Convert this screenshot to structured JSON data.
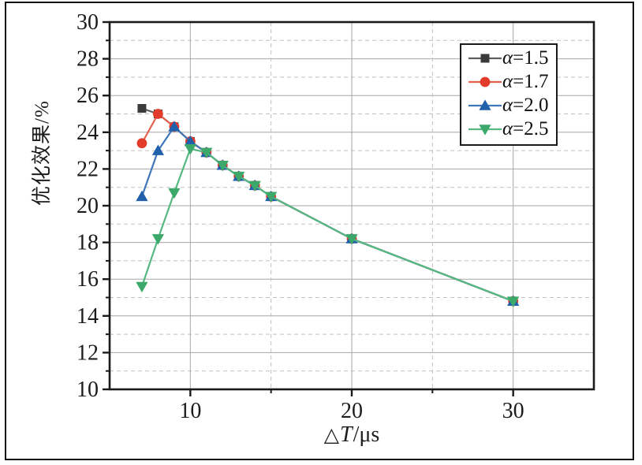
{
  "chart_data": {
    "type": "line",
    "title": "",
    "xlabel": "△T/μs",
    "xlabel_parts": {
      "symbol": "△",
      "variable": "T",
      "unit": "/μs"
    },
    "ylabel": "优化效果/%",
    "xlim": [
      5,
      35
    ],
    "ylim": [
      10,
      30
    ],
    "x_major_ticks": [
      10,
      20,
      30
    ],
    "x_minor_ticks": [
      15,
      25
    ],
    "y_major_ticks": [
      10,
      12,
      14,
      16,
      18,
      20,
      22,
      24,
      26,
      28,
      30
    ],
    "y_minor_ticks": [
      11,
      13,
      15,
      17,
      19,
      21,
      23,
      25,
      27,
      29
    ],
    "grid": {
      "major": "solid",
      "minor": "dashed",
      "on": true
    },
    "legend": {
      "position": "top-right",
      "entries": [
        "α=1.5",
        "α=1.7",
        "α=2.0",
        "α=2.5"
      ]
    },
    "series": [
      {
        "name": "α=1.5",
        "marker": "square",
        "fill": "#3a3a3a",
        "stroke": "#5f5f5f",
        "x": [
          7,
          8,
          9,
          10,
          11,
          12,
          13,
          14,
          15,
          20,
          30
        ],
        "y": [
          25.3,
          25.0,
          24.3,
          23.5,
          22.9,
          22.2,
          21.6,
          21.1,
          20.5,
          18.2,
          14.8
        ]
      },
      {
        "name": "α=1.7",
        "marker": "circle",
        "fill": "#e23b2b",
        "stroke": "#e4604f",
        "x": [
          7,
          8,
          9,
          10,
          11,
          12,
          13,
          14,
          15,
          20,
          30
        ],
        "y": [
          23.4,
          25.0,
          24.3,
          23.5,
          22.9,
          22.2,
          21.6,
          21.1,
          20.5,
          18.2,
          14.8
        ]
      },
      {
        "name": "α=2.0",
        "marker": "triangle-up",
        "fill": "#2160ab",
        "stroke": "#3f77ba",
        "x": [
          7,
          8,
          9,
          10,
          11,
          12,
          13,
          14,
          15,
          20,
          30
        ],
        "y": [
          20.5,
          23.0,
          24.3,
          23.5,
          22.9,
          22.2,
          21.6,
          21.1,
          20.5,
          18.2,
          14.8
        ]
      },
      {
        "name": "α=2.5",
        "marker": "triangle-down",
        "fill": "#3ca96b",
        "stroke": "#55b880",
        "x": [
          7,
          8,
          9,
          10,
          11,
          12,
          13,
          14,
          15,
          20,
          30
        ],
        "y": [
          15.6,
          18.2,
          20.7,
          23.1,
          22.9,
          22.2,
          21.6,
          21.1,
          20.5,
          18.2,
          14.8
        ]
      }
    ],
    "colors": {
      "axis": "#1a1a1a",
      "grid_major": "#a6a6a6",
      "grid_minor": "#c0c0c0",
      "tick_label": "#1c1c1c",
      "background": "#ffffff"
    }
  }
}
